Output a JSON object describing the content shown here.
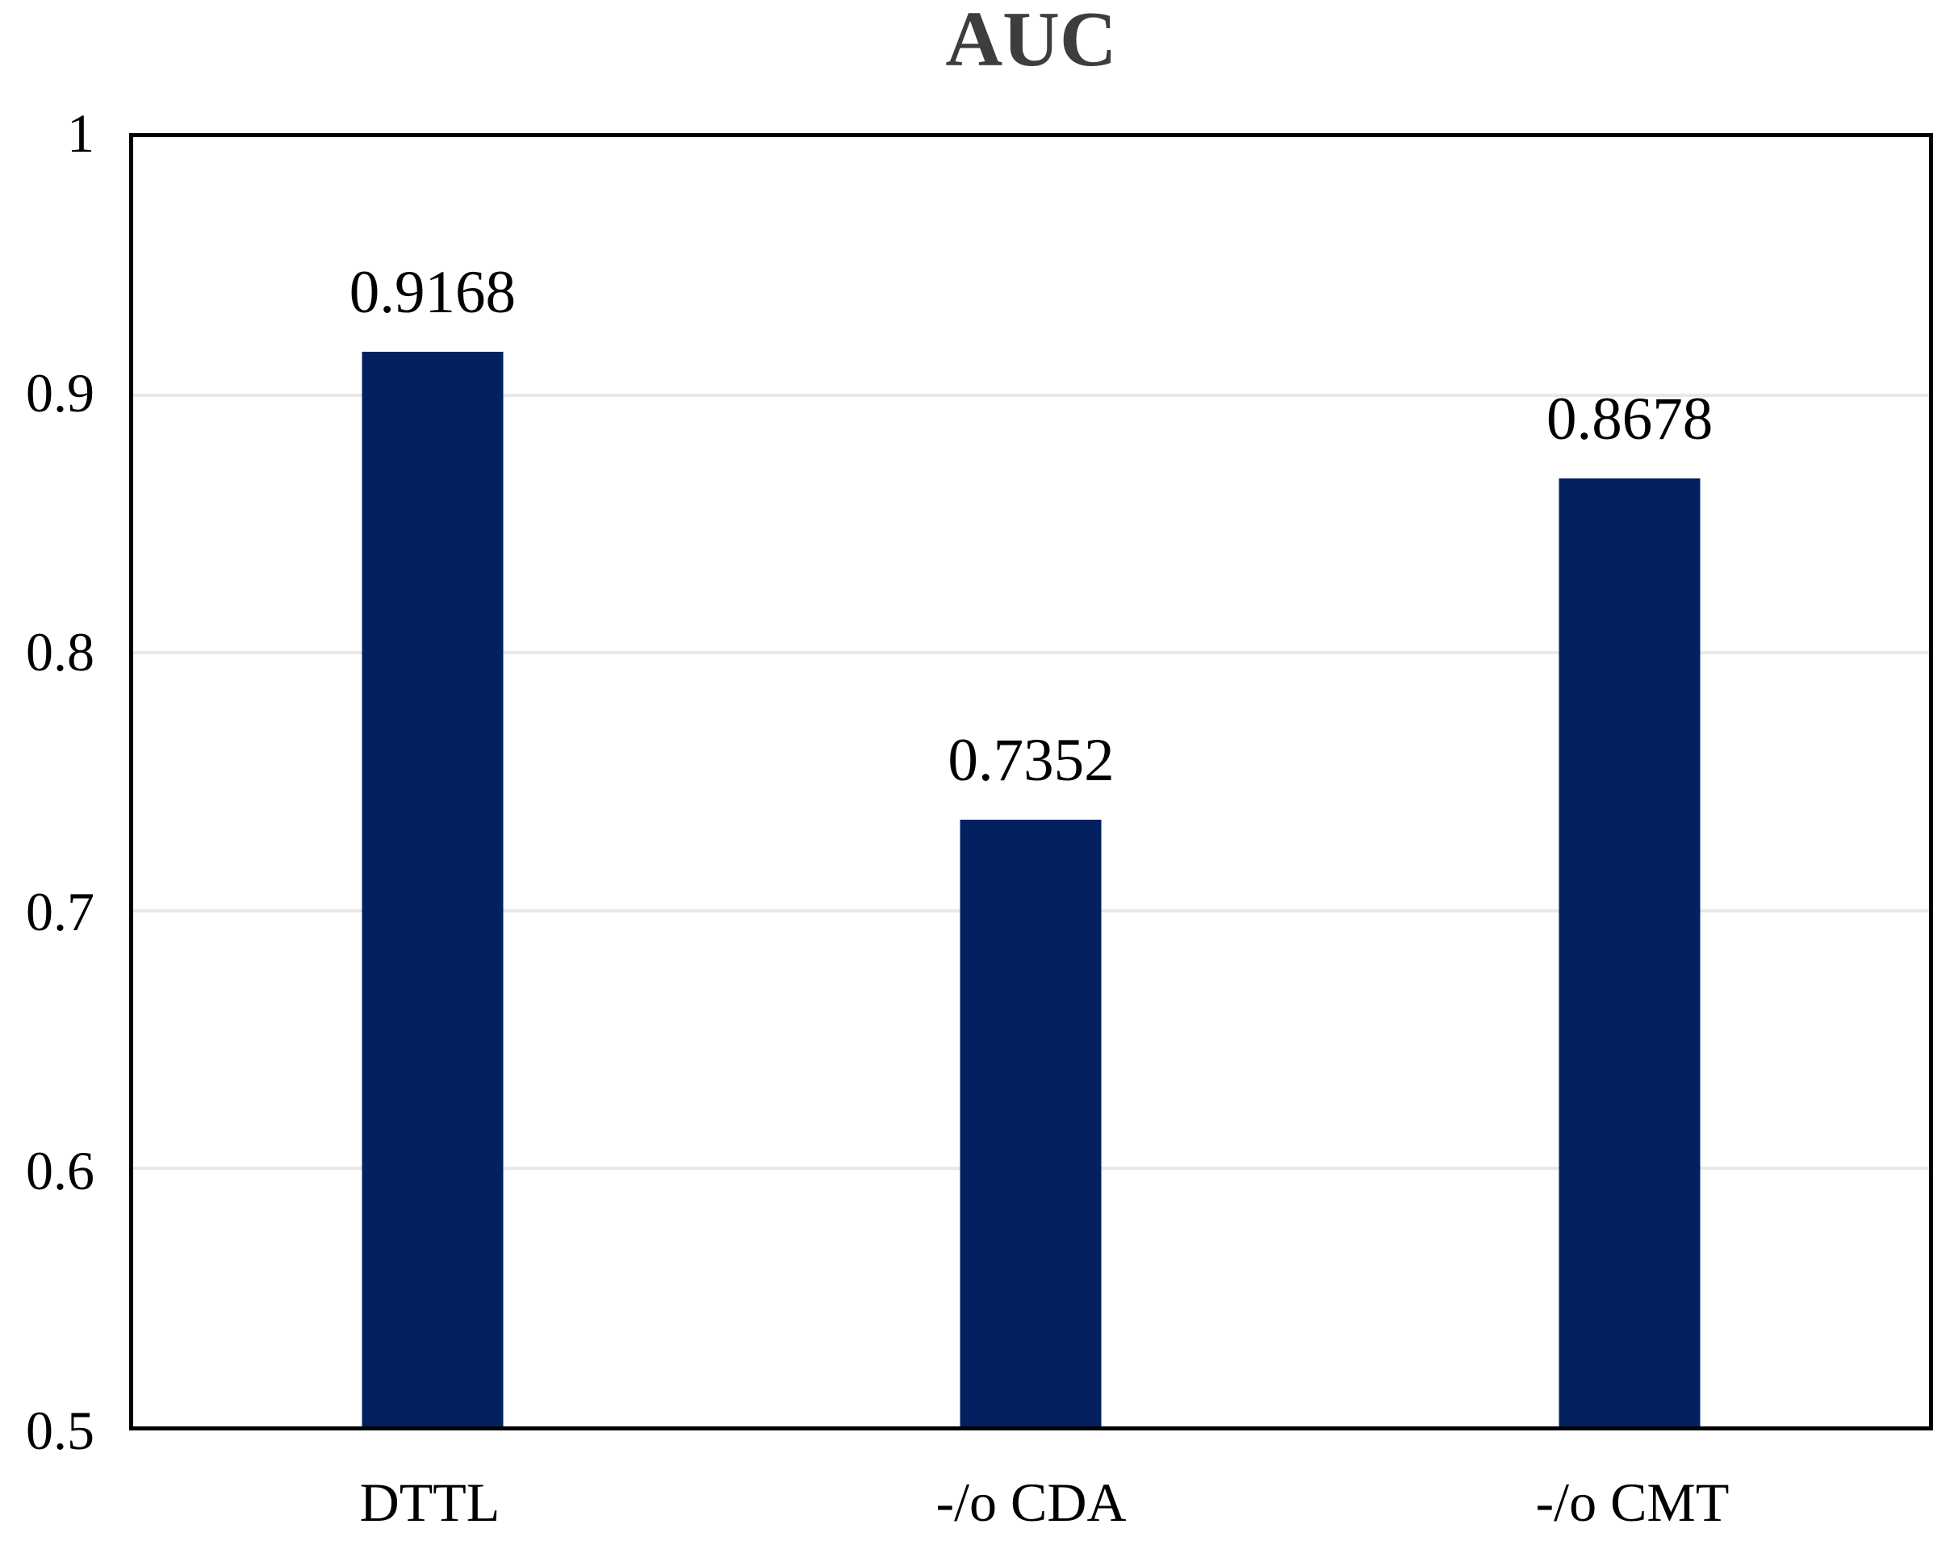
{
  "colors": {
    "bar": "#032160",
    "title": "#3d3d3d",
    "grid": "#e8e8e8",
    "axis": "#000000",
    "text": "#000000",
    "background": "#ffffff"
  },
  "chart_data": {
    "type": "bar",
    "title": "AUC",
    "categories": [
      "DTTL",
      "-/o CDA",
      "-/o CMT"
    ],
    "values": [
      0.9168,
      0.7352,
      0.8678
    ],
    "data_labels": [
      "0.9168",
      "0.7352",
      "0.8678"
    ],
    "xlabel": "",
    "ylabel": "",
    "ylim": [
      0.5,
      1.0
    ],
    "yticks": [
      1,
      0.9,
      0.8,
      0.7,
      0.6,
      0.5
    ],
    "ytick_labels": [
      "1",
      "0.9",
      "0.8",
      "0.7",
      "0.6",
      "0.5"
    ],
    "gridline_values": [
      0.9,
      0.8,
      0.7,
      0.6
    ],
    "grid": "horizontal",
    "legend": "none",
    "bar_color": "#032160"
  }
}
